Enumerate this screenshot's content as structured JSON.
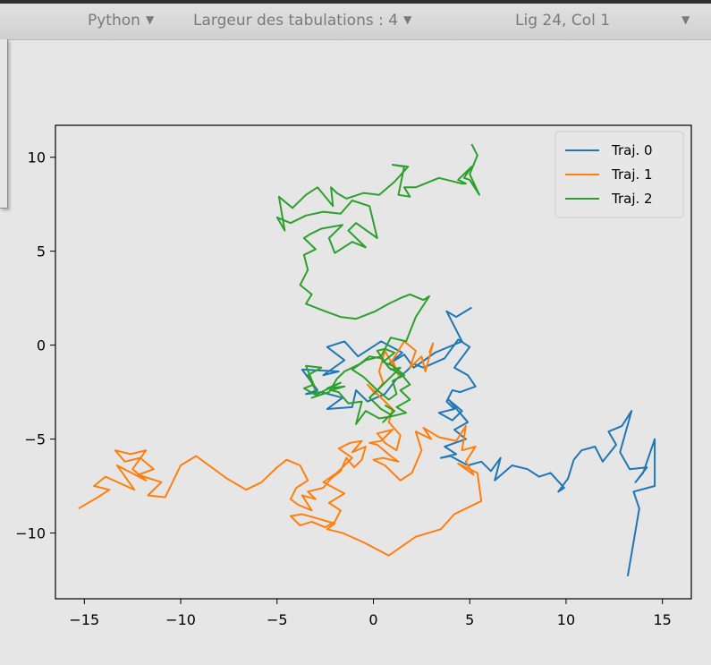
{
  "statusbar": {
    "language": "Python",
    "tab_width": "Largeur des tabulations : 4",
    "cursor_position": "Lig 24, Col 1",
    "dropdown_icon": "chevron-down-icon"
  },
  "chart_data": {
    "type": "line",
    "xlim": [
      -16.5,
      16.5
    ],
    "ylim": [
      -13.5,
      11.7
    ],
    "xticks": [
      -15,
      -10,
      -5,
      0,
      5,
      10,
      15
    ],
    "yticks": [
      -10,
      -5,
      0,
      5,
      10
    ],
    "xtick_labels": [
      "−15",
      "−10",
      "−5",
      "0",
      "5",
      "10",
      "15"
    ],
    "ytick_labels": [
      "−10",
      "−5",
      "0",
      "5",
      "10"
    ],
    "grid": false,
    "legend": "top-right",
    "series": [
      {
        "name": "Traj. 0",
        "color": "#1f77b4",
        "x": [
          5.1,
          4.3,
          3.8,
          4.6,
          3.2,
          2.1,
          1.6,
          0.8,
          1.5,
          0.4,
          -0.8,
          -1.5,
          -2.4,
          -1.5,
          -2.6,
          -1.8,
          -3.7,
          -2.9,
          -3.5,
          -2.7,
          -1.6,
          -2.4,
          -1.1,
          -0.9,
          -0.3,
          0.6,
          1.2,
          1.7,
          2.1,
          2.6,
          3.7,
          4.4,
          5.0,
          4.2,
          4.9,
          5.3,
          4.5,
          4.1,
          3.8,
          4.2,
          3.4,
          4.1,
          4.6,
          3.9,
          4.9,
          4.2,
          4.8,
          3.7,
          4.3,
          3.5,
          4.0,
          4.9,
          5.6,
          6.1,
          6.6,
          6.3,
          7.2,
          8.0,
          8.6,
          9.2,
          9.9,
          9.6,
          10.1,
          10.4,
          10.8,
          11.5,
          11.9,
          12.6,
          12.2,
          12.9,
          13.4,
          12.8,
          13.3,
          14.2,
          13.6,
          14.0,
          14.6,
          14.6,
          13.5,
          13.8,
          13.2
        ],
        "y": [
          2.0,
          1.5,
          1.8,
          0.2,
          -0.4,
          -1.2,
          -0.5,
          -1.0,
          -0.4,
          0.2,
          -0.6,
          0.2,
          -0.1,
          -0.8,
          -1.6,
          -1.4,
          -1.3,
          -2.4,
          -2.6,
          -2.5,
          -2.8,
          -3.4,
          -3.3,
          -2.4,
          -3.0,
          -2.6,
          -1.8,
          -1.4,
          -1.0,
          -1.2,
          -0.7,
          0.3,
          -0.1,
          -1.2,
          -1.6,
          -2.2,
          -2.5,
          -2.4,
          -3.0,
          -3.4,
          -3.6,
          -4.0,
          -3.5,
          -2.9,
          -4.1,
          -4.5,
          -5.0,
          -5.4,
          -5.8,
          -6.0,
          -5.9,
          -6.4,
          -6.2,
          -6.7,
          -6.0,
          -7.2,
          -6.4,
          -6.6,
          -7.0,
          -6.8,
          -7.6,
          -7.8,
          -7.1,
          -6.1,
          -5.6,
          -5.4,
          -6.2,
          -5.3,
          -4.6,
          -4.3,
          -3.5,
          -5.7,
          -6.6,
          -6.5,
          -7.3,
          -6.8,
          -5.0,
          -7.5,
          -7.8,
          -8.7,
          -12.3
        ]
      },
      {
        "name": "Traj. 1",
        "color": "#ff7f0e",
        "x": [
          2.9,
          3.1,
          2.7,
          2.5,
          1.9,
          2.2,
          1.6,
          1.0,
          1.3,
          0.6,
          0.3,
          0.5,
          0.1,
          -0.3,
          0.4,
          1.0,
          0.8,
          1.4,
          1.2,
          0.6,
          0.2,
          1.0,
          0.4,
          -0.2,
          0.2,
          0.9,
          1.3,
          0.5,
          0.0,
          0.6,
          1.4,
          2.0,
          2.5,
          2.2,
          3.0,
          2.6,
          3.4,
          4.3,
          4.8,
          4.6,
          5.3,
          4.8,
          5.2,
          4.4,
          5.4,
          5.6,
          4.2,
          3.5,
          2.2,
          0.8,
          -0.5,
          -1.6,
          -2.4,
          -2.0,
          -3.0,
          -3.7,
          -4.3,
          -3.8,
          -3.2,
          -2.5,
          -2.0,
          -1.7,
          -2.3,
          -1.5,
          -2.6,
          -1.9,
          -1.1,
          -1.8,
          -1.2,
          -0.6,
          -1.1,
          -0.4,
          -0.6,
          -1.0,
          -1.4,
          -1.7,
          -2.2,
          -2.6,
          -3.4,
          -3.0,
          -3.7,
          -3.2,
          -3.9,
          -4.3,
          -4.0,
          -3.4,
          -3.8,
          -4.5,
          -5.0,
          -5.8,
          -6.6,
          -7.6,
          -8.4,
          -9.2,
          -10.0,
          -10.8,
          -11.7,
          -11.0,
          -12.2,
          -11.4,
          -12.1,
          -12.9,
          -13.4,
          -12.6,
          -11.8,
          -12.5,
          -11.8,
          -13.3,
          -12.4,
          -13.9,
          -14.5,
          -13.7,
          -14.3,
          -14.8,
          -15.3
        ],
        "y": [
          -0.4,
          0.1,
          -1.4,
          -0.6,
          -1.2,
          -0.3,
          0.2,
          -0.8,
          -1.6,
          -0.3,
          -1.4,
          -2.0,
          -2.6,
          -2.1,
          -2.8,
          -3.4,
          -4.1,
          -4.8,
          -5.6,
          -5.2,
          -4.7,
          -4.5,
          -5.1,
          -5.2,
          -5.3,
          -5.9,
          -6.2,
          -6.0,
          -6.1,
          -6.4,
          -7.2,
          -6.8,
          -5.6,
          -4.6,
          -5.0,
          -4.4,
          -4.9,
          -5.1,
          -4.3,
          -5.6,
          -5.4,
          -6.2,
          -6.9,
          -6.3,
          -6.8,
          -8.3,
          -9.0,
          -9.8,
          -10.2,
          -11.2,
          -10.5,
          -10.0,
          -9.8,
          -9.5,
          -9.2,
          -9.0,
          -9.1,
          -9.6,
          -9.4,
          -9.7,
          -9.4,
          -8.8,
          -8.4,
          -7.9,
          -7.3,
          -6.8,
          -6.0,
          -5.5,
          -5.2,
          -5.1,
          -5.7,
          -5.4,
          -6.1,
          -6.5,
          -6.0,
          -6.7,
          -7.1,
          -7.6,
          -7.8,
          -8.2,
          -8.0,
          -8.8,
          -8.5,
          -8.2,
          -7.6,
          -7.2,
          -6.4,
          -6.1,
          -6.5,
          -7.3,
          -7.7,
          -7.1,
          -6.5,
          -5.9,
          -6.4,
          -8.1,
          -8.0,
          -7.3,
          -6.9,
          -6.6,
          -6.0,
          -6.2,
          -5.6,
          -5.8,
          -5.6,
          -6.6,
          -7.2,
          -6.4,
          -7.7,
          -7.0,
          -7.5,
          -7.7,
          -8.1,
          -8.4,
          -8.7
        ]
      },
      {
        "name": "Traj. 2",
        "color": "#2ca02c",
        "x": [
          5.1,
          5.4,
          5.0,
          5.5,
          5.0,
          4.7,
          5.1,
          4.4,
          4.8,
          4.6,
          3.4,
          2.2,
          1.6,
          1.9,
          1.3,
          1.6,
          1.0,
          1.8,
          1.1,
          0.3,
          -0.5,
          -1.4,
          -1.9,
          -2.2,
          -2.1,
          -2.9,
          -3.5,
          -4.2,
          -4.9,
          -4.6,
          -5.0,
          -4.3,
          -3.5,
          -2.6,
          -1.7,
          -1.1,
          -0.2,
          0.2,
          -0.9,
          -1.3,
          -0.4,
          -1.1,
          -2.0,
          -2.3,
          -1.6,
          -2.7,
          -3.3,
          -3.6,
          -3.0,
          -3.6,
          -3.4,
          -3.8,
          -3.2,
          -3.5,
          -2.5,
          -1.7,
          -0.9,
          0.1,
          0.8,
          1.4,
          1.9,
          2.6,
          2.9,
          2.2,
          1.7,
          0.9,
          0.4,
          -0.4,
          -1.1,
          -0.5,
          0.2,
          0.8,
          1.2,
          1.0,
          1.6,
          1.0,
          0.5,
          1.1,
          0.6,
          0.2,
          0.8,
          1.5,
          1.9,
          1.4,
          1.9,
          1.2,
          1.7,
          0.9,
          0.3,
          -0.4,
          -0.9,
          -0.6,
          -1.3,
          -1.8,
          -2.2,
          -1.5,
          -2.4,
          -1.7,
          -2.9,
          -3.4,
          -2.7,
          -3.5,
          -3.1,
          -3.6,
          -2.9,
          -3.2,
          -2.3,
          -1.9,
          -1.5,
          -0.7,
          -0.2,
          0.4,
          0.9,
          1.4,
          0.8,
          0.3,
          -0.2,
          0.4,
          0.9,
          0.5,
          1.1,
          0.6
        ],
        "y": [
          10.7,
          10.1,
          9.1,
          8.0,
          8.8,
          8.9,
          9.5,
          8.8,
          8.6,
          8.6,
          8.9,
          8.4,
          8.4,
          7.9,
          8.0,
          9.5,
          9.6,
          9.5,
          8.7,
          8.0,
          8.1,
          7.8,
          8.1,
          8.4,
          7.4,
          8.4,
          8.0,
          7.3,
          7.9,
          6.1,
          6.8,
          6.5,
          6.9,
          7.1,
          7.0,
          7.7,
          7.4,
          5.7,
          6.5,
          6.1,
          5.2,
          5.5,
          4.9,
          5.7,
          6.4,
          6.2,
          5.9,
          5.7,
          5.1,
          4.8,
          4.0,
          3.2,
          2.7,
          2.2,
          1.8,
          1.5,
          1.4,
          1.8,
          2.2,
          2.5,
          2.7,
          2.4,
          2.6,
          1.5,
          0.2,
          0.4,
          -0.6,
          -0.8,
          -1.3,
          -1.7,
          -2.4,
          -2.9,
          -2.6,
          -1.9,
          -1.6,
          -1.1,
          -0.9,
          -0.4,
          -0.2,
          -0.3,
          -1.2,
          -1.6,
          -2.1,
          -2.4,
          -2.9,
          -3.3,
          -3.6,
          -3.8,
          -3.9,
          -3.5,
          -4.2,
          -3.0,
          -3.1,
          -2.5,
          -2.4,
          -2.2,
          -2.3,
          -2.0,
          -2.6,
          -1.6,
          -1.2,
          -1.1,
          -2.1,
          -2.3,
          -2.7,
          -2.8,
          -2.5,
          -1.8,
          -1.4,
          -1.0,
          -0.6,
          -0.7,
          -1.3,
          -1.2,
          -1.8,
          -2.3,
          -2.8,
          -3.4,
          -3.7,
          -4.1,
          -3.5,
          -3.2
        ]
      }
    ]
  }
}
